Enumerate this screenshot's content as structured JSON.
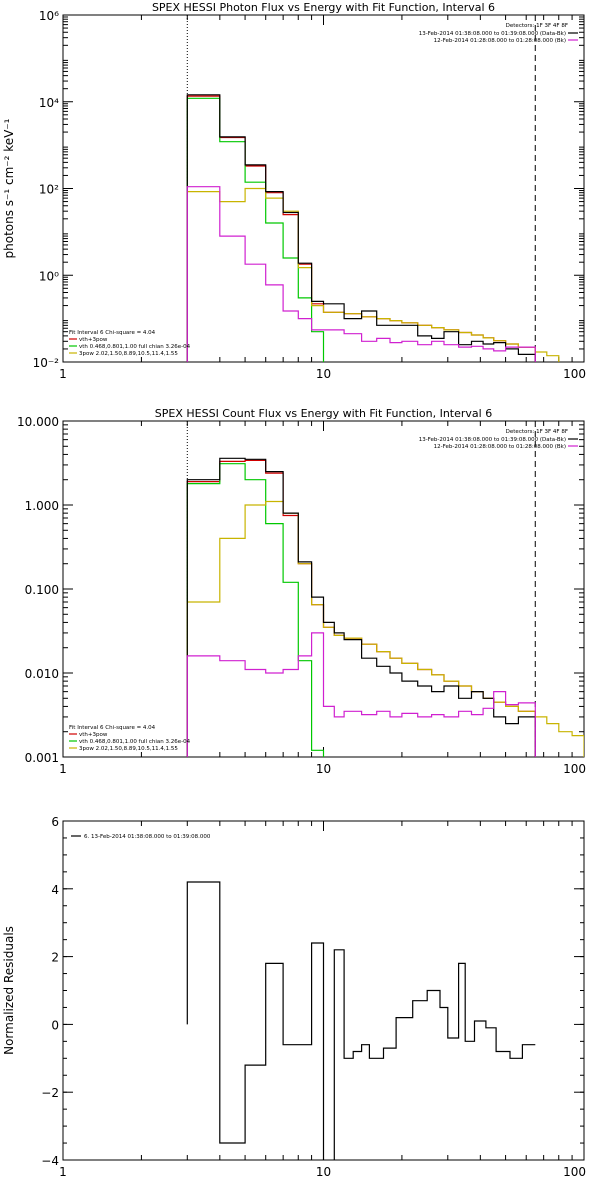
{
  "chart_data": [
    {
      "id": "photon",
      "type": "line",
      "title": "SPEX HESSI Photon Flux vs Energy with Fit Function, Interval 6",
      "ylabel": "photons s⁻¹ cm⁻² keV⁻¹",
      "xlabel": "",
      "xscale": "log",
      "yscale": "log",
      "xlim": [
        1,
        100
      ],
      "ylim": [
        0.01,
        1000000
      ],
      "xticks": [
        {
          "v": 1,
          "label": "1"
        },
        {
          "v": 10,
          "label": "10"
        },
        {
          "v": 100,
          "label": "100"
        }
      ],
      "yticks": [
        {
          "v": 0.01,
          "label": "10⁻²"
        },
        {
          "v": 1,
          "label": "10⁰"
        },
        {
          "v": 100,
          "label": "10²"
        },
        {
          "v": 10000,
          "label": "10⁴"
        },
        {
          "v": 1000000,
          "label": "10⁶"
        }
      ],
      "vlines": [
        {
          "x": 3,
          "style": "dotted"
        },
        {
          "x": 65,
          "style": "dashed"
        }
      ],
      "detectors": "Detectors: 1F 3F 4F 8F",
      "time_legend": [
        {
          "text": "13-Feb-2014 01:38:08.000 to 01:39:08.000 (Data-Bk)",
          "color": "#000000"
        },
        {
          "text": "12-Feb-2014 01:28:08.000 to 01:28:08.000 (Bk)",
          "color": "#d020d0"
        }
      ],
      "fit_header": "Fit Interval  6   Chi-square = 4.04",
      "fit_legend": [
        {
          "text": "vth+3pow",
          "color": "#d00000"
        },
        {
          "text": "vth 0.468,0.801,1.00  full chian 3.26e-04",
          "color": "#00c800"
        },
        {
          "text": "3pow 2.02,1.50,8.89,10.5,11.4,1.55",
          "color": "#c8b400"
        }
      ],
      "edges": [
        3,
        4,
        5,
        6,
        7,
        8,
        9,
        10,
        12,
        14,
        16,
        18,
        20,
        23,
        26,
        29,
        33,
        37,
        41,
        45,
        50,
        56,
        65,
        72,
        80
      ],
      "series": [
        {
          "name": "vth+3pow",
          "color": "#d00000",
          "values": [
            13500,
            1500,
            330,
            80,
            25,
            1.8,
            0.22,
            0.14,
            0.13,
            0.11,
            0.1,
            0.09,
            0.08,
            0.07,
            0.062,
            0.055,
            0.048,
            0.042,
            0.036,
            0.031,
            0.026,
            0.022
          ]
        },
        {
          "name": "vth",
          "color": "#00c800",
          "values": [
            12000,
            1200,
            140,
            16,
            2.5,
            0.3,
            0.05,
            0.006
          ]
        },
        {
          "name": "3pow",
          "color": "#c8b400",
          "values": [
            85,
            50,
            100,
            60,
            30,
            1.5,
            0.2,
            0.14,
            0.13,
            0.11,
            0.1,
            0.09,
            0.08,
            0.07,
            0.062,
            0.055,
            0.048,
            0.042,
            0.036,
            0.031,
            0.026,
            0.022,
            0.017,
            0.014
          ]
        },
        {
          "name": "Data-Bk",
          "color": "#000000",
          "values": [
            14500,
            1550,
            350,
            85,
            28,
            1.9,
            0.25,
            0.22,
            0.1,
            0.15,
            0.07,
            0.07,
            0.07,
            0.04,
            0.035,
            0.05,
            0.025,
            0.03,
            0.026,
            0.028,
            0.02,
            0.015
          ]
        },
        {
          "name": "Bk",
          "color": "#d020d0",
          "values": [
            110,
            8,
            1.8,
            0.6,
            0.15,
            0.1,
            0.055,
            0.055,
            0.045,
            0.03,
            0.035,
            0.028,
            0.03,
            0.025,
            0.03,
            0.025,
            0.022,
            0.023,
            0.02,
            0.018,
            0.022,
            0.022
          ]
        }
      ]
    },
    {
      "id": "count",
      "type": "line",
      "title": "SPEX HESSI Count Flux vs Energy with Fit Function, Interval 6",
      "ylabel": "",
      "xlabel": "",
      "xscale": "log",
      "yscale": "log",
      "xlim": [
        1,
        100
      ],
      "ylim": [
        0.001,
        10
      ],
      "xticks": [
        {
          "v": 1,
          "label": "1"
        },
        {
          "v": 10,
          "label": "10"
        },
        {
          "v": 100,
          "label": "100"
        }
      ],
      "yticks": [
        {
          "v": 0.001,
          "label": "0.001"
        },
        {
          "v": 0.01,
          "label": "0.010"
        },
        {
          "v": 0.1,
          "label": "0.100"
        },
        {
          "v": 1,
          "label": "1.000"
        },
        {
          "v": 10,
          "label": "10.000"
        }
      ],
      "vlines": [
        {
          "x": 3,
          "style": "dotted"
        },
        {
          "x": 65,
          "style": "dashed"
        }
      ],
      "detectors": "Detectors: 1F 3F 4F 8F",
      "time_legend": [
        {
          "text": "13-Feb-2014 01:38:08.000 to 01:39:08.000 (Data-Bk)",
          "color": "#000000"
        },
        {
          "text": "12-Feb-2014 01:28:08.000 to 01:28:08.000 (Bk)",
          "color": "#d020d0"
        }
      ],
      "fit_header": "Fit Interval  6   Chi-square = 4.04",
      "fit_legend": [
        {
          "text": "vth+3pow",
          "color": "#d00000"
        },
        {
          "text": "vth 0.468,0.801,1.00  full chian 3.26e-04",
          "color": "#00c800"
        },
        {
          "text": "3pow 2.02,1.50,8.89,10.5,11.4,1.55",
          "color": "#c8b400"
        }
      ],
      "edges": [
        3,
        4,
        5,
        6,
        7,
        8,
        9,
        10,
        11,
        12,
        14,
        16,
        18,
        20,
        23,
        26,
        29,
        33,
        37,
        41,
        45,
        50,
        56,
        65,
        72,
        80,
        90,
        100
      ],
      "series": [
        {
          "name": "vth+3pow",
          "color": "#d00000",
          "values": [
            1.9,
            3.3,
            3.4,
            2.4,
            0.75,
            0.2,
            0.065,
            0.035,
            0.028,
            0.026,
            0.022,
            0.018,
            0.015,
            0.013,
            0.011,
            0.0095,
            0.008,
            0.007,
            0.006,
            0.005,
            0.0045,
            0.004,
            0.0035
          ]
        },
        {
          "name": "vth",
          "color": "#00c800",
          "values": [
            1.8,
            3.1,
            2.0,
            0.6,
            0.12,
            0.014,
            0.0012
          ]
        },
        {
          "name": "3pow",
          "color": "#c8b400",
          "values": [
            0.07,
            0.4,
            1.0,
            1.1,
            0.8,
            0.2,
            0.065,
            0.035,
            0.028,
            0.026,
            0.022,
            0.018,
            0.015,
            0.013,
            0.011,
            0.0095,
            0.008,
            0.007,
            0.006,
            0.005,
            0.0045,
            0.004,
            0.0035,
            0.003,
            0.0025,
            0.002,
            0.0018
          ]
        },
        {
          "name": "Data-Bk",
          "color": "#000000",
          "values": [
            2.0,
            3.6,
            3.5,
            2.5,
            0.8,
            0.21,
            0.08,
            0.04,
            0.03,
            0.025,
            0.015,
            0.012,
            0.01,
            0.008,
            0.007,
            0.006,
            0.007,
            0.005,
            0.006,
            0.005,
            0.003,
            0.0025,
            0.003
          ]
        },
        {
          "name": "Bk",
          "color": "#d020d0",
          "values": [
            0.016,
            0.014,
            0.011,
            0.01,
            0.011,
            0.016,
            0.03,
            0.004,
            0.003,
            0.0035,
            0.0032,
            0.0035,
            0.003,
            0.0033,
            0.003,
            0.0032,
            0.003,
            0.0035,
            0.0032,
            0.0038,
            0.006,
            0.0042,
            0.0044
          ]
        }
      ]
    },
    {
      "id": "residuals",
      "type": "line",
      "title": "",
      "ylabel": "Normalized Residuals",
      "xlabel": "",
      "xscale": "log",
      "yscale": "linear",
      "xlim": [
        1,
        100
      ],
      "ylim": [
        -4,
        6
      ],
      "xticks": [
        {
          "v": 1,
          "label": "1"
        },
        {
          "v": 10,
          "label": "10"
        },
        {
          "v": 100,
          "label": "100"
        }
      ],
      "yticks": [
        {
          "v": -4,
          "label": "−4"
        },
        {
          "v": -2,
          "label": "−2"
        },
        {
          "v": 0,
          "label": "0"
        },
        {
          "v": 2,
          "label": "2"
        },
        {
          "v": 4,
          "label": "4"
        },
        {
          "v": 6,
          "label": "6"
        }
      ],
      "legend": "6. 13-Feb-2014 01:38:08.000 to 01:39:08.000",
      "edges": [
        3,
        4,
        5,
        6,
        7,
        8,
        9,
        10,
        11,
        12,
        13,
        14,
        15,
        17,
        19,
        22,
        25,
        28,
        30,
        33,
        35,
        38,
        42,
        46,
        52,
        58,
        65
      ],
      "series": [
        {
          "name": "",
          "color": "#000000",
          "values": [
            4.2,
            -3.5,
            -1.2,
            1.8,
            -0.6,
            -0.6,
            2.4,
            -4.1,
            2.2,
            -1.0,
            -0.8,
            -0.6,
            -1.0,
            -0.7,
            0.2,
            0.7,
            1.0,
            0.5,
            -0.4,
            1.8,
            -0.5,
            0.1,
            -0.1,
            -0.8,
            -1.0,
            -0.6
          ]
        }
      ]
    }
  ]
}
